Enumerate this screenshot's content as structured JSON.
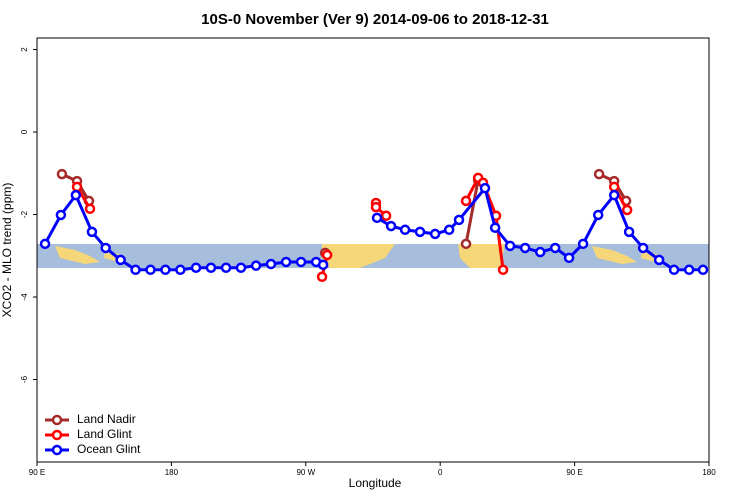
{
  "chart_data": {
    "type": "line",
    "title": "10S-0 November (Ver 9)   2014-09-06 to 2018-12-31",
    "xlabel": "Longitude",
    "ylabel": "XCO2 - MLO trend (ppm)",
    "xlim": [
      90,
      540
    ],
    "ylim": [
      -8,
      2.28
    ],
    "xticks": [
      {
        "value": 90,
        "label": "90 E"
      },
      {
        "value": 180,
        "label": "180"
      },
      {
        "value": 270,
        "label": "90 W"
      },
      {
        "value": 360,
        "label": "0"
      },
      {
        "value": 450,
        "label": "90 E"
      },
      {
        "value": 540,
        "label": "180"
      }
    ],
    "yticks": [
      2,
      0,
      -2,
      -4,
      -6
    ],
    "legend": "bottom-left",
    "series": [
      {
        "name": "Land Nadir",
        "color": "#a52a2a",
        "x": [
          106.7,
          116.8,
          124.8,
          null,
          283,
          null,
          377.3,
          385.4,
          null,
          466.4,
          476.5,
          484.5
        ],
        "values": [
          -1.02,
          -1.19,
          -1.67,
          null,
          -2.93,
          null,
          -2.71,
          -1.16,
          null,
          -1.02,
          -1.19,
          -1.67
        ]
      },
      {
        "name": "Land Glint",
        "color": "#ff0000",
        "x": [
          116.8,
          125.5,
          null,
          280.9,
          284.3,
          null,
          317,
          317,
          323.8,
          null,
          377.3,
          385.4,
          388.7,
          397.4,
          402.1,
          null,
          476.5,
          485.2
        ],
        "values": [
          -1.33,
          -1.86,
          null,
          -3.51,
          -2.98,
          null,
          -1.72,
          -1.82,
          -2.03,
          null,
          -1.67,
          -1.11,
          -1.23,
          -2.03,
          -3.34,
          null,
          -1.33,
          -1.89
        ]
      },
      {
        "name": "Ocean Glint",
        "color": "#0000ff",
        "x": [
          95.4,
          106,
          116,
          126.8,
          136,
          146,
          156,
          166,
          176,
          186,
          196.5,
          206.5,
          216.6,
          226.6,
          236.7,
          246.7,
          256.8,
          266.8,
          276.9,
          281.6,
          null,
          317.7,
          327.1,
          336.5,
          346.5,
          356.6,
          366,
          372.6,
          390,
          396.8,
          406.8,
          416.9,
          427,
          437,
          446.3,
          455.7,
          465.8,
          476.5,
          486.5,
          495.9,
          506.6,
          516.6,
          526.7,
          536
        ],
        "values": [
          -2.71,
          -2.01,
          -1.53,
          -2.42,
          -2.81,
          -3.1,
          -3.34,
          -3.34,
          -3.34,
          -3.34,
          -3.29,
          -3.29,
          -3.29,
          -3.29,
          -3.24,
          -3.2,
          -3.15,
          -3.15,
          -3.15,
          -3.22,
          null,
          -2.08,
          -2.28,
          -2.37,
          -2.42,
          -2.47,
          -2.37,
          -2.13,
          -1.36,
          -2.32,
          -2.76,
          -2.81,
          -2.91,
          -2.81,
          -3.05,
          -2.71,
          -2.01,
          -1.53,
          -2.42,
          -2.81,
          -3.1,
          -3.34,
          -3.34,
          -3.34
        ]
      }
    ]
  }
}
